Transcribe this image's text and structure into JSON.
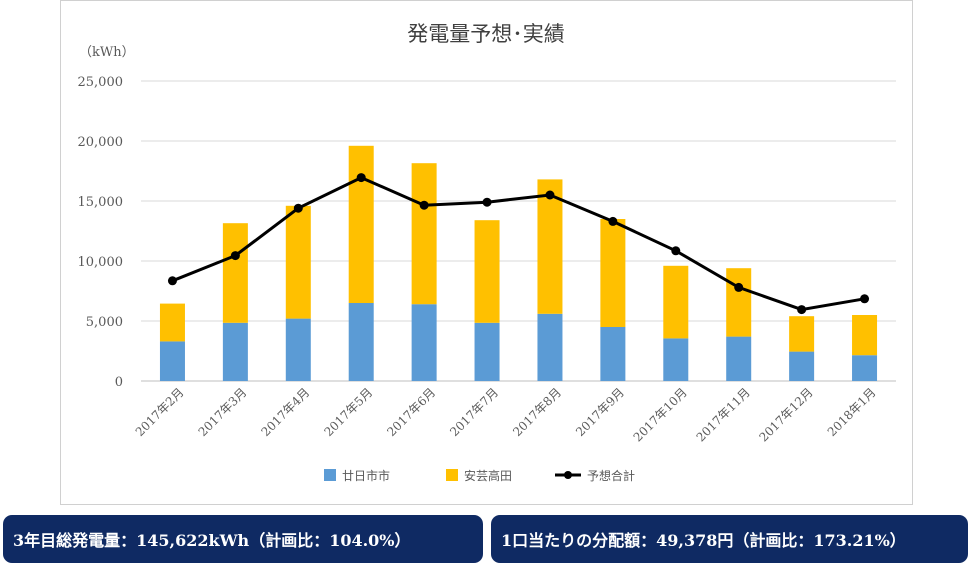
{
  "chart_data": {
    "type": "bar",
    "title": "発電量予想･実績",
    "unit_label": "（kWh）",
    "categories": [
      "2017年2月",
      "2017年3月",
      "2017年4月",
      "2017年5月",
      "2017年6月",
      "2017年7月",
      "2017年8月",
      "2017年9月",
      "2017年10月",
      "2017年11月",
      "2017年12月",
      "2018年1月"
    ],
    "series": [
      {
        "name": "廿日市市",
        "type": "bar",
        "stacked": true,
        "color": "#5b9bd5",
        "values": [
          3300,
          4850,
          5200,
          6500,
          6400,
          4850,
          5600,
          4500,
          3550,
          3700,
          2450,
          2150
        ]
      },
      {
        "name": "安芸高田",
        "type": "bar",
        "stacked": true,
        "color": "#ffc000",
        "values": [
          3150,
          8300,
          9400,
          13100,
          11750,
          8550,
          11200,
          9000,
          6050,
          5700,
          2950,
          3350
        ]
      },
      {
        "name": "予想合計",
        "type": "line",
        "color": "#000000",
        "values": [
          8350,
          10450,
          14400,
          16950,
          14650,
          14900,
          15500,
          13300,
          10850,
          7800,
          5950,
          6850
        ]
      }
    ],
    "yticks": [
      "0",
      "5,000",
      "10,000",
      "15,000",
      "20,000",
      "25,000"
    ],
    "ylim": [
      0,
      25000
    ],
    "grid": true,
    "legend_position": "bottom"
  },
  "summary": {
    "total_label": "3年目総発電量：145,622kWh（計画比：104.0%）",
    "share_label": "1口当たりの分配額：49,378円（計画比：173.21%）"
  }
}
